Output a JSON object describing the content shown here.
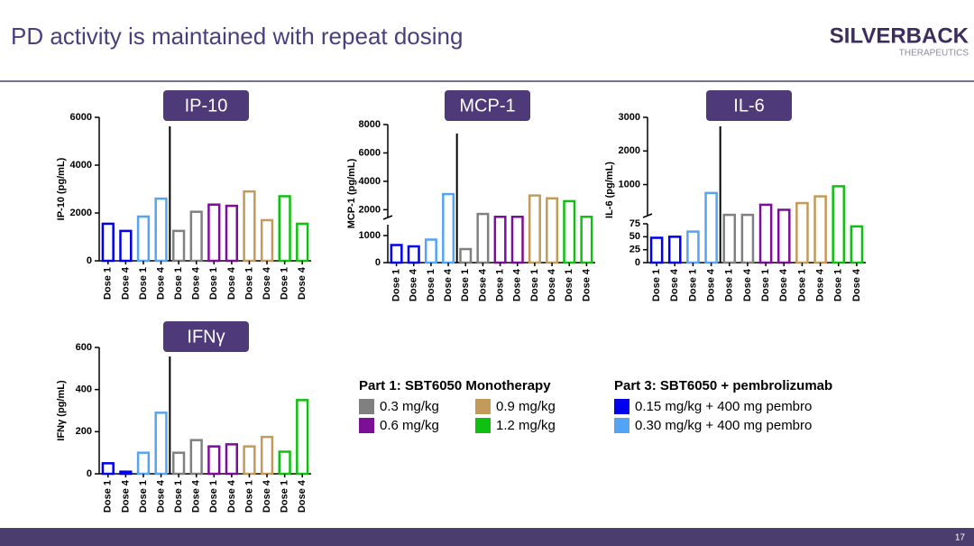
{
  "header": {
    "title": "PD activity is maintained with repeat dosing",
    "logo": "SILVERBACK",
    "logo_sub": "THERAPEUTICS"
  },
  "page_number": "17",
  "chart_data": [
    {
      "type": "bar",
      "title": "IP-10",
      "y_label": "IP-10 (pg/mL)",
      "categories": [
        "Dose 1",
        "Dose 4",
        "Dose 1",
        "Dose 4",
        "Dose 1",
        "Dose 4",
        "Dose 1",
        "Dose 4",
        "Dose 1",
        "Dose 4",
        "Dose 1",
        "Dose 4"
      ],
      "values": [
        1550,
        1250,
        1850,
        2600,
        1250,
        2050,
        2350,
        2300,
        2900,
        1700,
        2700,
        1550
      ],
      "colors": [
        "#0000ee",
        "#0000ee",
        "#55a3f5",
        "#55a3f5",
        "#808080",
        "#808080",
        "#7b0f96",
        "#7b0f96",
        "#c49a5a",
        "#c49a5a",
        "#10c010",
        "#10c010"
      ],
      "segments": [
        {
          "ylim": [
            0,
            6000
          ],
          "yticks": [
            0,
            2000,
            4000,
            6000
          ]
        }
      ]
    },
    {
      "type": "bar",
      "title": "MCP-1",
      "y_label": "MCP-1 (pg/mL)",
      "categories": [
        "Dose 1",
        "Dose 4",
        "Dose 1",
        "Dose 4",
        "Dose 1",
        "Dose 4",
        "Dose 1",
        "Dose 4",
        "Dose 1",
        "Dose 4",
        "Dose 1",
        "Dose 4"
      ],
      "values": [
        650,
        600,
        850,
        3100,
        500,
        1700,
        1500,
        1500,
        3000,
        2800,
        2600,
        1500
      ],
      "colors": [
        "#0000ee",
        "#0000ee",
        "#55a3f5",
        "#55a3f5",
        "#808080",
        "#808080",
        "#7b0f96",
        "#7b0f96",
        "#c49a5a",
        "#c49a5a",
        "#10c010",
        "#10c010"
      ],
      "segments": [
        {
          "ylim": [
            0,
            1400
          ],
          "yticks": [
            0,
            1000
          ]
        },
        {
          "ylim": [
            1450,
            8000
          ],
          "yticks": [
            2000,
            4000,
            6000,
            8000
          ]
        }
      ]
    },
    {
      "type": "bar",
      "title": "IL-6",
      "y_label": "IL-6 (pg/mL)",
      "categories": [
        "Dose 1",
        "Dose 4",
        "Dose 1",
        "Dose 4",
        "Dose 1",
        "Dose 4",
        "Dose 1",
        "Dose 4",
        "Dose 1",
        "Dose 4",
        "Dose 1",
        "Dose 4"
      ],
      "values": [
        48,
        50,
        60,
        750,
        100,
        100,
        400,
        250,
        450,
        650,
        950,
        70
      ],
      "colors": [
        "#0000ee",
        "#0000ee",
        "#55a3f5",
        "#55a3f5",
        "#808080",
        "#808080",
        "#7b0f96",
        "#7b0f96",
        "#c49a5a",
        "#c49a5a",
        "#10c010",
        "#10c010"
      ],
      "segments": [
        {
          "ylim": [
            0,
            75
          ],
          "yticks": [
            0,
            25,
            50,
            75
          ]
        },
        {
          "ylim": [
            75,
            3000
          ],
          "yticks": [
            1000,
            2000,
            3000
          ]
        }
      ]
    },
    {
      "type": "bar",
      "title": "IFNγ",
      "y_label": "IFNγ (pg/mL)",
      "categories": [
        "Dose 1",
        "Dose 4",
        "Dose 1",
        "Dose 4",
        "Dose 1",
        "Dose 4",
        "Dose 1",
        "Dose 4",
        "Dose 1",
        "Dose 4",
        "Dose 1",
        "Dose 4"
      ],
      "values": [
        50,
        10,
        100,
        290,
        100,
        160,
        130,
        140,
        130,
        175,
        105,
        350
      ],
      "colors": [
        "#0000ee",
        "#0000ee",
        "#55a3f5",
        "#55a3f5",
        "#808080",
        "#808080",
        "#7b0f96",
        "#7b0f96",
        "#c49a5a",
        "#c49a5a",
        "#10c010",
        "#10c010"
      ],
      "segments": [
        {
          "ylim": [
            0,
            600
          ],
          "yticks": [
            0,
            200,
            400,
            600
          ]
        }
      ]
    }
  ],
  "legend": {
    "groups": [
      {
        "title": "Part 1: SBT6050 Monotherapy",
        "items": [
          {
            "label": "0.3 mg/kg",
            "color": "#808080"
          },
          {
            "label": "0.6 mg/kg",
            "color": "#7b0f96"
          },
          {
            "label": "0.9 mg/kg",
            "color": "#c49a5a"
          },
          {
            "label": "1.2 mg/kg",
            "color": "#10c010"
          }
        ]
      },
      {
        "title": "Part 3: SBT6050 + pembrolizumab",
        "items": [
          {
            "label": "0.15 mg/kg + 400 mg pembro",
            "color": "#0000ee"
          },
          {
            "label": "0.30 mg/kg + 400 mg pembro",
            "color": "#55a3f5"
          }
        ]
      }
    ]
  }
}
